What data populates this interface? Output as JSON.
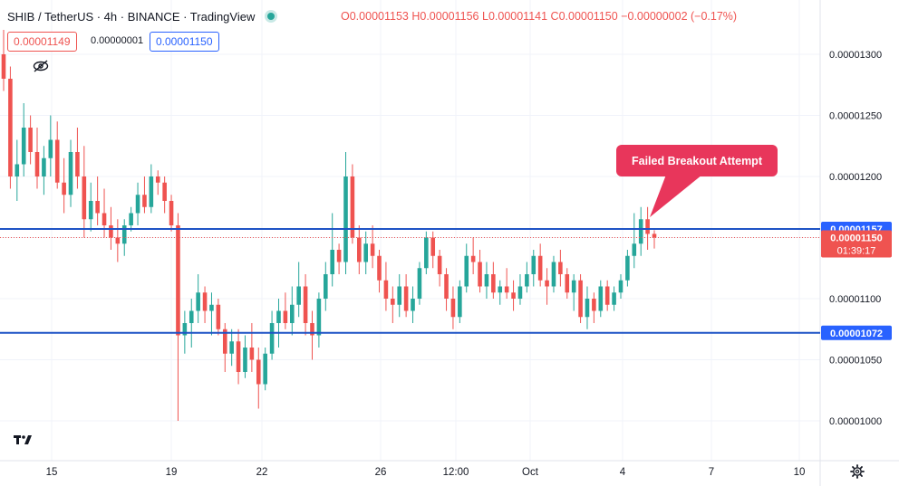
{
  "header": {
    "symbol": "SHIB / TetherUS · 4h · BINANCE · TradingView",
    "ohlc": {
      "o_label": "O",
      "o": "0.00001153",
      "h_label": "H",
      "h": "0.00001156",
      "l_label": "L",
      "l": "0.00001141",
      "c_label": "C",
      "c": "0.00001150",
      "change": "−0.00000002 (−0.17%)"
    },
    "status_color": "#26a69a"
  },
  "trade": {
    "sell_price": "0.00001149",
    "spread": "0.00000001",
    "buy_price": "0.00001150"
  },
  "colors": {
    "up": "#26a69a",
    "down": "#ef5350",
    "level_line": "#1e53c5",
    "callout": "#e8365b"
  },
  "chart_data": {
    "type": "candlestick",
    "title": "",
    "y_axis": {
      "side": "right",
      "ylim": [
        9.8e-06,
        1.318e-05
      ],
      "ticks": [
        "0.00001300",
        "0.00001250",
        "0.00001200",
        "0.00001150",
        "0.00001100",
        "0.00001050",
        "0.00001000"
      ],
      "tick_values": [
        1.3e-05,
        1.25e-05,
        1.2e-05,
        1.15e-05,
        1.1e-05,
        1.05e-05,
        1e-05
      ]
    },
    "x_axis": {
      "ticks": [
        "15",
        "19",
        "22",
        "26",
        "12:00",
        "Oct",
        "4",
        "7",
        "10"
      ]
    },
    "level_labels": [
      {
        "label": "0.00001157",
        "value": 1.157e-05,
        "kind": "horizontal-line",
        "color": "#2962ff"
      },
      {
        "label": "0.00001072",
        "value": 1.072e-05,
        "kind": "horizontal-line",
        "color": "#2962ff"
      },
      {
        "label": "0.00001150",
        "value": 1.15e-05,
        "kind": "last-price",
        "color": "#ef5350",
        "countdown": "01:39:17"
      }
    ],
    "annotation": {
      "text": "Failed Breakout Attempt"
    },
    "candles": [
      [
        1.3e-05,
        1.32e-05,
        1.27e-05,
        1.28e-05
      ],
      [
        1.28e-05,
        1.29e-05,
        1.19e-05,
        1.2e-05
      ],
      [
        1.2e-05,
        1.23e-05,
        1.18e-05,
        1.21e-05
      ],
      [
        1.21e-05,
        1.26e-05,
        1.2e-05,
        1.24e-05
      ],
      [
        1.24e-05,
        1.25e-05,
        1.21e-05,
        1.22e-05
      ],
      [
        1.22e-05,
        1.24e-05,
        1.19e-05,
        1.2e-05
      ],
      [
        1.2e-05,
        1.225e-05,
        1.185e-05,
        1.215e-05
      ],
      [
        1.215e-05,
        1.25e-05,
        1.2e-05,
        1.23e-05
      ],
      [
        1.23e-05,
        1.245e-05,
        1.19e-05,
        1.195e-05
      ],
      [
        1.195e-05,
        1.215e-05,
        1.17e-05,
        1.185e-05
      ],
      [
        1.185e-05,
        1.23e-05,
        1.175e-05,
        1.22e-05
      ],
      [
        1.22e-05,
        1.24e-05,
        1.19e-05,
        1.2e-05
      ],
      [
        1.2e-05,
        1.225e-05,
        1.15e-05,
        1.165e-05
      ],
      [
        1.165e-05,
        1.195e-05,
        1.155e-05,
        1.18e-05
      ],
      [
        1.18e-05,
        1.2e-05,
        1.16e-05,
        1.17e-05
      ],
      [
        1.17e-05,
        1.19e-05,
        1.15e-05,
        1.16e-05
      ],
      [
        1.16e-05,
        1.175e-05,
        1.14e-05,
        1.15e-05
      ],
      [
        1.15e-05,
        1.165e-05,
        1.13e-05,
        1.145e-05
      ],
      [
        1.145e-05,
        1.165e-05,
        1.135e-05,
        1.16e-05
      ],
      [
        1.16e-05,
        1.175e-05,
        1.155e-05,
        1.17e-05
      ],
      [
        1.17e-05,
        1.195e-05,
        1.16e-05,
        1.185e-05
      ],
      [
        1.185e-05,
        1.2e-05,
        1.17e-05,
        1.175e-05
      ],
      [
        1.175e-05,
        1.21e-05,
        1.17e-05,
        1.2e-05
      ],
      [
        1.2e-05,
        1.205e-05,
        1.185e-05,
        1.195e-05
      ],
      [
        1.195e-05,
        1.2e-05,
        1.17e-05,
        1.18e-05
      ],
      [
        1.18e-05,
        1.185e-05,
        1.155e-05,
        1.16e-05
      ],
      [
        1.16e-05,
        1.17e-05,
        1e-05,
        1.07e-05
      ],
      [
        1.07e-05,
        1.09e-05,
        1.055e-05,
        1.08e-05
      ],
      [
        1.08e-05,
        1.1e-05,
        1.06e-05,
        1.09e-05
      ],
      [
        1.09e-05,
        1.12e-05,
        1.08e-05,
        1.105e-05
      ],
      [
        1.105e-05,
        1.11e-05,
        1.08e-05,
        1.09e-05
      ],
      [
        1.09e-05,
        1.105e-05,
        1.07e-05,
        1.095e-05
      ],
      [
        1.095e-05,
        1.1e-05,
        1.07e-05,
        1.075e-05
      ],
      [
        1.075e-05,
        1.08e-05,
        1.04e-05,
        1.055e-05
      ],
      [
        1.055e-05,
        1.075e-05,
        1.045e-05,
        1.065e-05
      ],
      [
        1.065e-05,
        1.075e-05,
        1.03e-05,
        1.04e-05
      ],
      [
        1.04e-05,
        1.07e-05,
        1.035e-05,
        1.06e-05
      ],
      [
        1.06e-05,
        1.08e-05,
        1.04e-05,
        1.05e-05
      ],
      [
        1.05e-05,
        1.06e-05,
        1.01e-05,
        1.03e-05
      ],
      [
        1.03e-05,
        1.06e-05,
        1.025e-05,
        1.055e-05
      ],
      [
        1.055e-05,
        1.09e-05,
        1.05e-05,
        1.08e-05
      ],
      [
        1.08e-05,
        1.1e-05,
        1.06e-05,
        1.09e-05
      ],
      [
        1.09e-05,
        1.105e-05,
        1.075e-05,
        1.08e-05
      ],
      [
        1.08e-05,
        1.11e-05,
        1.07e-05,
        1.095e-05
      ],
      [
        1.095e-05,
        1.13e-05,
        1.085e-05,
        1.11e-05
      ],
      [
        1.11e-05,
        1.12e-05,
        1.07e-05,
        1.08e-05
      ],
      [
        1.08e-05,
        1.09e-05,
        1.05e-05,
        1.07e-05
      ],
      [
        1.07e-05,
        1.105e-05,
        1.06e-05,
        1.1e-05
      ],
      [
        1.1e-05,
        1.13e-05,
        1.09e-05,
        1.12e-05
      ],
      [
        1.12e-05,
        1.17e-05,
        1.11e-05,
        1.14e-05
      ],
      [
        1.14e-05,
        1.145e-05,
        1.12e-05,
        1.13e-05
      ],
      [
        1.13e-05,
        1.22e-05,
        1.12e-05,
        1.2e-05
      ],
      [
        1.2e-05,
        1.21e-05,
        1.145e-05,
        1.15e-05
      ],
      [
        1.15e-05,
        1.16e-05,
        1.12e-05,
        1.13e-05
      ],
      [
        1.13e-05,
        1.155e-05,
        1.12e-05,
        1.145e-05
      ],
      [
        1.145e-05,
        1.16e-05,
        1.125e-05,
        1.135e-05
      ],
      [
        1.135e-05,
        1.14e-05,
        1.105e-05,
        1.115e-05
      ],
      [
        1.115e-05,
        1.13e-05,
        1.09e-05,
        1.1e-05
      ],
      [
        1.1e-05,
        1.11e-05,
        1.08e-05,
        1.095e-05
      ],
      [
        1.095e-05,
        1.12e-05,
        1.085e-05,
        1.11e-05
      ],
      [
        1.11e-05,
        1.12e-05,
        1.085e-05,
        1.09e-05
      ],
      [
        1.09e-05,
        1.11e-05,
        1.08e-05,
        1.1e-05
      ],
      [
        1.1e-05,
        1.13e-05,
        1.095e-05,
        1.125e-05
      ],
      [
        1.125e-05,
        1.155e-05,
        1.12e-05,
        1.15e-05
      ],
      [
        1.15e-05,
        1.155e-05,
        1.125e-05,
        1.135e-05
      ],
      [
        1.135e-05,
        1.14e-05,
        1.11e-05,
        1.12e-05
      ],
      [
        1.12e-05,
        1.125e-05,
        1.09e-05,
        1.1e-05
      ],
      [
        1.1e-05,
        1.11e-05,
        1.075e-05,
        1.085e-05
      ],
      [
        1.085e-05,
        1.115e-05,
        1.08e-05,
        1.11e-05
      ],
      [
        1.11e-05,
        1.145e-05,
        1.105e-05,
        1.135e-05
      ],
      [
        1.135e-05,
        1.15e-05,
        1.12e-05,
        1.13e-05
      ],
      [
        1.13e-05,
        1.14e-05,
        1.105e-05,
        1.11e-05
      ],
      [
        1.11e-05,
        1.13e-05,
        1.1e-05,
        1.12e-05
      ],
      [
        1.12e-05,
        1.13e-05,
        1.1e-05,
        1.105e-05
      ],
      [
        1.105e-05,
        1.115e-05,
        1.095e-05,
        1.11e-05
      ],
      [
        1.11e-05,
        1.125e-05,
        1.1e-05,
        1.105e-05
      ],
      [
        1.105e-05,
        1.115e-05,
        1.09e-05,
        1.1e-05
      ],
      [
        1.1e-05,
        1.12e-05,
        1.095e-05,
        1.11e-05
      ],
      [
        1.11e-05,
        1.13e-05,
        1.105e-05,
        1.12e-05
      ],
      [
        1.12e-05,
        1.14e-05,
        1.11e-05,
        1.135e-05
      ],
      [
        1.135e-05,
        1.145e-05,
        1.11e-05,
        1.115e-05
      ],
      [
        1.115e-05,
        1.125e-05,
        1.095e-05,
        1.11e-05
      ],
      [
        1.11e-05,
        1.135e-05,
        1.105e-05,
        1.13e-05
      ],
      [
        1.13e-05,
        1.14e-05,
        1.11e-05,
        1.12e-05
      ],
      [
        1.12e-05,
        1.125e-05,
        1.1e-05,
        1.105e-05
      ],
      [
        1.105e-05,
        1.12e-05,
        1.09e-05,
        1.115e-05
      ],
      [
        1.115e-05,
        1.12e-05,
        1.08e-05,
        1.085e-05
      ],
      [
        1.085e-05,
        1.11e-05,
        1.075e-05,
        1.1e-05
      ],
      [
        1.1e-05,
        1.105e-05,
        1.08e-05,
        1.09e-05
      ],
      [
        1.09e-05,
        1.115e-05,
        1.085e-05,
        1.11e-05
      ],
      [
        1.11e-05,
        1.115e-05,
        1.09e-05,
        1.095e-05
      ],
      [
        1.095e-05,
        1.11e-05,
        1.09e-05,
        1.105e-05
      ],
      [
        1.105e-05,
        1.12e-05,
        1.1e-05,
        1.115e-05
      ],
      [
        1.115e-05,
        1.14e-05,
        1.11e-05,
        1.135e-05
      ],
      [
        1.135e-05,
        1.17e-05,
        1.125e-05,
        1.145e-05
      ],
      [
        1.145e-05,
        1.175e-05,
        1.135e-05,
        1.165e-05
      ],
      [
        1.165e-05,
        1.175e-05,
        1.14e-05,
        1.153e-05
      ],
      [
        1.153e-05,
        1.156e-05,
        1.141e-05,
        1.15e-05
      ]
    ]
  }
}
